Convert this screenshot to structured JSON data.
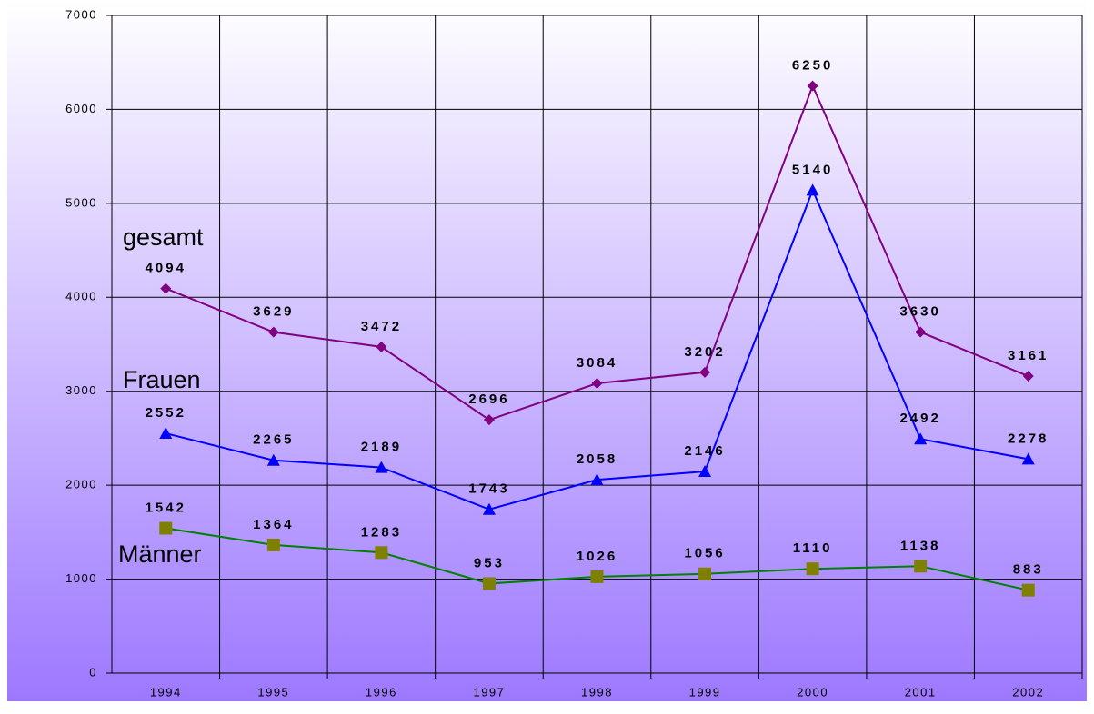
{
  "chart_data": {
    "type": "line",
    "categories": [
      "1994",
      "1995",
      "1996",
      "1997",
      "1998",
      "1999",
      "2000",
      "2001",
      "2002"
    ],
    "series": [
      {
        "name": "gesamt",
        "color": "#800080",
        "marker": "diamond",
        "values": [
          4094,
          3629,
          3472,
          2696,
          3084,
          3202,
          6250,
          3630,
          3161
        ]
      },
      {
        "name": "Frauen",
        "color": "#0000ff",
        "marker": "triangle",
        "values": [
          2552,
          2265,
          2189,
          1743,
          2058,
          2146,
          5140,
          2492,
          2278
        ]
      },
      {
        "name": "Männer",
        "color": "#008000",
        "marker_color": "#808000",
        "marker": "square",
        "values": [
          1542,
          1364,
          1283,
          953,
          1026,
          1056,
          1110,
          1138,
          883
        ]
      }
    ],
    "ylim": [
      0,
      7000
    ],
    "yticks": [
      0,
      1000,
      2000,
      3000,
      4000,
      5000,
      6000,
      7000
    ],
    "grid": true
  }
}
